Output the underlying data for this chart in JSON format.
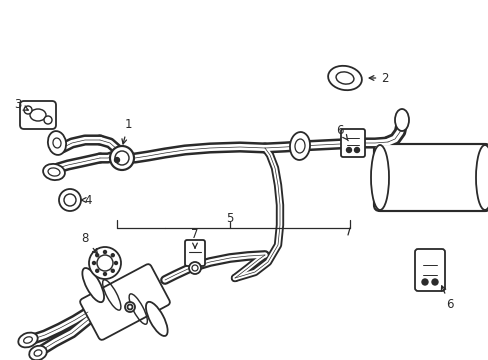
{
  "background_color": "#ffffff",
  "line_color": "#2a2a2a",
  "lw": 1.3,
  "label_fontsize": 8.5,
  "figsize": [
    4.89,
    3.6
  ],
  "dpi": 100
}
